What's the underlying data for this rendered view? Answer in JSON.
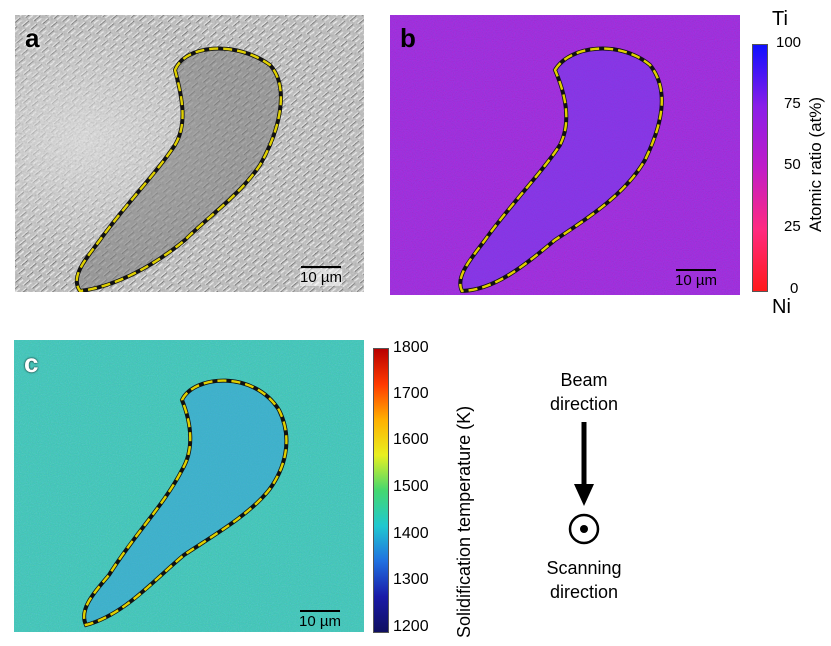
{
  "panels": {
    "a": {
      "letter": "a",
      "scale": "10 µm"
    },
    "b": {
      "letter": "b",
      "scale": "10 µm"
    },
    "c": {
      "letter": "c",
      "scale": "10 µm"
    }
  },
  "colorbar_b": {
    "label": "Atomic ratio (at%)",
    "ticks": [
      "100",
      "75",
      "50",
      "25",
      "0"
    ],
    "top_end": "Ti",
    "bottom_end": "Ni",
    "colors": [
      "#1010ff",
      "#8a1ee8",
      "#c01cc8",
      "#ff2a80",
      "#ff1a1a"
    ]
  },
  "colorbar_c": {
    "label": "Solidification temperature (K)",
    "ticks": [
      "1800",
      "1700",
      "1600",
      "1500",
      "1400",
      "1300",
      "1200"
    ],
    "colors": [
      "#b80000",
      "#ff3a00",
      "#ffb000",
      "#e8f020",
      "#44d870",
      "#20c8d0",
      "#2070e0",
      "#1a1aa8",
      "#101060"
    ]
  },
  "legend": {
    "beam": "Beam direction",
    "scanning": "Scanning direction"
  },
  "colors": {
    "outline": "#e0d000",
    "panel_b_bg": "#8f3fdf",
    "panel_c_bg": "#3cc6b2"
  }
}
